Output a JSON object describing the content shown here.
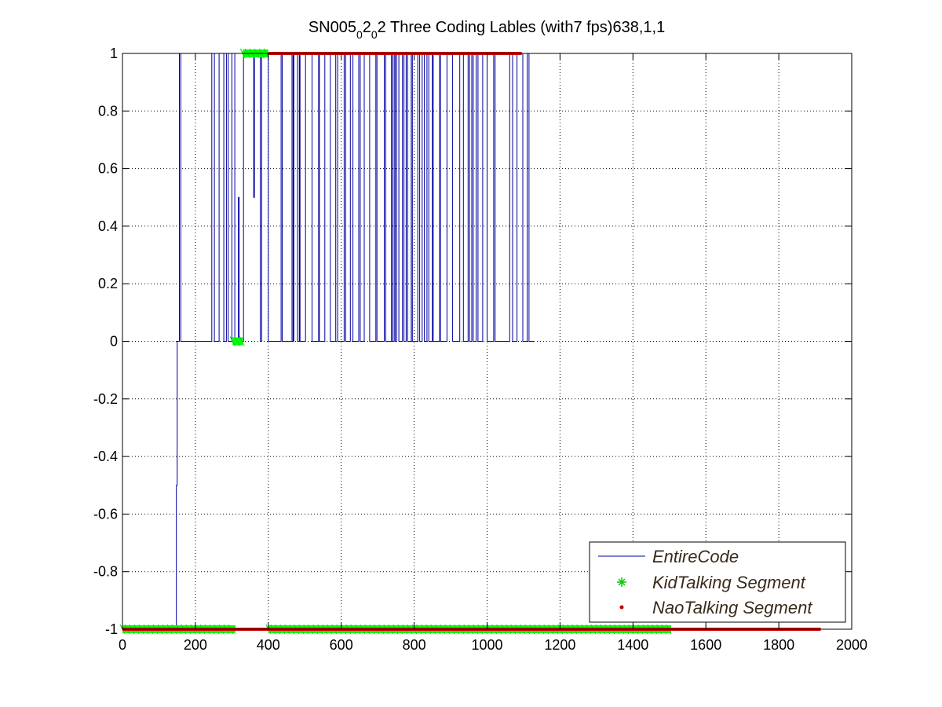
{
  "chart_data": {
    "type": "line",
    "title": {
      "main": "SN005",
      "sub1": "0",
      "mid1": "2",
      "sub2": "0",
      "rest": "2 Three Coding Lables (with7 fps)638,1,1"
    },
    "xlim": [
      0,
      2000
    ],
    "ylim": [
      -1,
      1
    ],
    "x_ticks": [
      "0",
      "200",
      "400",
      "600",
      "800",
      "1000",
      "1200",
      "1400",
      "1600",
      "1800",
      "2000"
    ],
    "y_ticks": [
      "1",
      "0.8",
      "0.6",
      "0.4",
      "0.2",
      "0",
      "-0.2",
      "-0.4",
      "-0.6",
      "-0.8",
      "-1"
    ],
    "grid": true,
    "legend_position": "bottom-right",
    "series": [
      {
        "name": "EntireCode",
        "style": "line",
        "color": "#0000a0",
        "points": [
          [
            0,
            -1
          ],
          [
            148,
            -1
          ],
          [
            148,
            -0.5
          ],
          [
            150,
            -0.5
          ],
          [
            150,
            0
          ],
          [
            156,
            0
          ],
          [
            156,
            1
          ],
          [
            160,
            1
          ],
          [
            160,
            0
          ],
          [
            245,
            0
          ],
          [
            245,
            1
          ],
          [
            252,
            1
          ],
          [
            252,
            0
          ],
          [
            265,
            0
          ],
          [
            265,
            1
          ],
          [
            278,
            1
          ],
          [
            278,
            0
          ],
          [
            285,
            0
          ],
          [
            285,
            1
          ],
          [
            290,
            1
          ],
          [
            290,
            0
          ],
          [
            300,
            0
          ],
          [
            300,
            1
          ],
          [
            308,
            1
          ],
          [
            308,
            0
          ],
          [
            318,
            0
          ],
          [
            318,
            0.5
          ],
          [
            320,
            0.5
          ],
          [
            320,
            0
          ],
          [
            332,
            0
          ],
          [
            332,
            1
          ],
          [
            360,
            1
          ],
          [
            360,
            0.5
          ],
          [
            362,
            0.5
          ],
          [
            362,
            1
          ],
          [
            378,
            1
          ],
          [
            378,
            0
          ],
          [
            382,
            0
          ],
          [
            382,
            1
          ],
          [
            400,
            1
          ],
          [
            400,
            0
          ],
          [
            435,
            0
          ],
          [
            435,
            1
          ],
          [
            438,
            1
          ],
          [
            438,
            0
          ],
          [
            465,
            0
          ],
          [
            465,
            1
          ],
          [
            468,
            1
          ],
          [
            468,
            0
          ],
          [
            470,
            0
          ],
          [
            470,
            1
          ],
          [
            480,
            1
          ],
          [
            480,
            0
          ],
          [
            485,
            0
          ],
          [
            485,
            1
          ],
          [
            487,
            1
          ],
          [
            487,
            0
          ],
          [
            502,
            0
          ],
          [
            502,
            1
          ],
          [
            520,
            1
          ],
          [
            520,
            0
          ],
          [
            538,
            0
          ],
          [
            538,
            1
          ],
          [
            540,
            1
          ],
          [
            540,
            0
          ],
          [
            555,
            0
          ],
          [
            555,
            1
          ],
          [
            570,
            1
          ],
          [
            570,
            0
          ],
          [
            585,
            0
          ],
          [
            585,
            1
          ],
          [
            590,
            1
          ],
          [
            590,
            0
          ],
          [
            608,
            0
          ],
          [
            608,
            1
          ],
          [
            612,
            1
          ],
          [
            612,
            0
          ],
          [
            625,
            0
          ],
          [
            625,
            1
          ],
          [
            632,
            1
          ],
          [
            632,
            0
          ],
          [
            648,
            0
          ],
          [
            648,
            1
          ],
          [
            652,
            1
          ],
          [
            652,
            0
          ],
          [
            663,
            0
          ],
          [
            663,
            1
          ],
          [
            678,
            1
          ],
          [
            678,
            0
          ],
          [
            695,
            0
          ],
          [
            695,
            1
          ],
          [
            698,
            1
          ],
          [
            698,
            0
          ],
          [
            718,
            0
          ],
          [
            718,
            1
          ],
          [
            722,
            1
          ],
          [
            722,
            0
          ],
          [
            738,
            0
          ],
          [
            738,
            1
          ],
          [
            740,
            1
          ],
          [
            740,
            0
          ],
          [
            745,
            0
          ],
          [
            745,
            1
          ],
          [
            748,
            1
          ],
          [
            748,
            0
          ],
          [
            752,
            0
          ],
          [
            752,
            1
          ],
          [
            758,
            1
          ],
          [
            758,
            0
          ],
          [
            768,
            0
          ],
          [
            768,
            1
          ],
          [
            772,
            1
          ],
          [
            772,
            0
          ],
          [
            778,
            0
          ],
          [
            778,
            1
          ],
          [
            782,
            1
          ],
          [
            782,
            0
          ],
          [
            792,
            0
          ],
          [
            792,
            1
          ],
          [
            795,
            1
          ],
          [
            795,
            0
          ],
          [
            810,
            0
          ],
          [
            810,
            1
          ],
          [
            815,
            1
          ],
          [
            815,
            0
          ],
          [
            822,
            0
          ],
          [
            822,
            1
          ],
          [
            828,
            1
          ],
          [
            828,
            0
          ],
          [
            835,
            0
          ],
          [
            835,
            1
          ],
          [
            840,
            1
          ],
          [
            840,
            0
          ],
          [
            850,
            0
          ],
          [
            850,
            1
          ],
          [
            852,
            1
          ],
          [
            852,
            0
          ],
          [
            870,
            0
          ],
          [
            870,
            1
          ],
          [
            872,
            1
          ],
          [
            872,
            0
          ],
          [
            890,
            0
          ],
          [
            890,
            1
          ],
          [
            905,
            1
          ],
          [
            905,
            0
          ],
          [
            925,
            0
          ],
          [
            925,
            1
          ],
          [
            935,
            1
          ],
          [
            935,
            0
          ],
          [
            948,
            0
          ],
          [
            948,
            1
          ],
          [
            952,
            1
          ],
          [
            952,
            0
          ],
          [
            958,
            0
          ],
          [
            958,
            1
          ],
          [
            962,
            1
          ],
          [
            962,
            0
          ],
          [
            970,
            0
          ],
          [
            970,
            1
          ],
          [
            975,
            1
          ],
          [
            975,
            0
          ],
          [
            988,
            0
          ],
          [
            988,
            1
          ],
          [
            1000,
            1
          ],
          [
            1000,
            0
          ],
          [
            1018,
            0
          ],
          [
            1018,
            1
          ],
          [
            1022,
            1
          ],
          [
            1022,
            0
          ],
          [
            1062,
            0
          ],
          [
            1062,
            1
          ],
          [
            1070,
            1
          ],
          [
            1070,
            0
          ],
          [
            1082,
            0
          ],
          [
            1082,
            1
          ],
          [
            1098,
            1
          ],
          [
            1098,
            0
          ],
          [
            1110,
            0
          ],
          [
            1110,
            1
          ],
          [
            1115,
            1
          ],
          [
            1115,
            0
          ],
          [
            1130,
            0
          ]
        ]
      },
      {
        "name": "KidTalking Segment",
        "style": "marker",
        "marker": "asterisk",
        "color": "#00ff00",
        "segments": [
          [
            0,
            310,
            -1
          ],
          [
            302,
            330,
            0
          ],
          [
            330,
            400,
            1
          ],
          [
            400,
            1505,
            -1
          ]
        ]
      },
      {
        "name": "NaoTalking Segment",
        "style": "marker",
        "marker": "dot",
        "color": "#cc0000",
        "segments": [
          [
            0,
            1915,
            -1
          ],
          [
            400,
            1095,
            1
          ]
        ]
      }
    ]
  }
}
